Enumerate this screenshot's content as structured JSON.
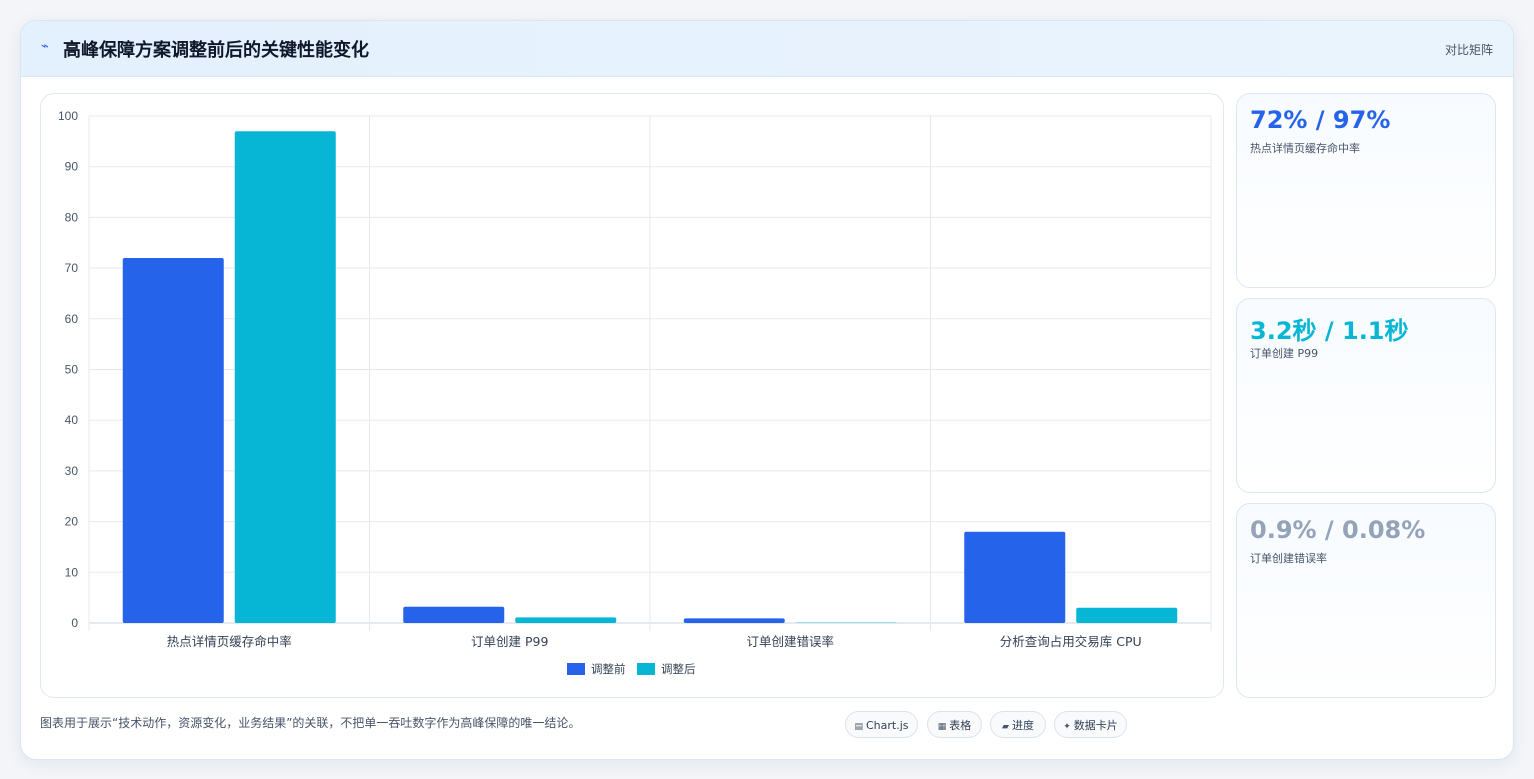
{
  "header": {
    "title": "高峰保障方案调整前后的关键性能变化",
    "right_label": "对比矩阵",
    "icon": "lightning-icon"
  },
  "chart_data": {
    "type": "bar",
    "categories": [
      "热点详情页缓存命中率",
      "订单创建 P99",
      "订单创建错误率",
      "分析查询占用交易库 CPU"
    ],
    "series": [
      {
        "name": "调整前",
        "color": "#2563eb",
        "values": [
          72,
          3.2,
          0.9,
          18
        ]
      },
      {
        "name": "调整后",
        "color": "#06b6d4",
        "values": [
          97,
          1.1,
          0.08,
          3
        ]
      }
    ],
    "ylim": [
      0,
      100
    ],
    "yticks": [
      0,
      10,
      20,
      30,
      40,
      50,
      60,
      70,
      80,
      90,
      100
    ],
    "grid": true,
    "legend_position": "bottom-center"
  },
  "kpis": [
    {
      "value": "72% / 97%",
      "label": "热点详情页缓存命中率",
      "color": "#2563eb"
    },
    {
      "value": "3.2秒 / 1.1秒",
      "label": "订单创建 P99",
      "color": "#06b6d4"
    },
    {
      "value": "0.9% / 0.08%",
      "label": "订单创建错误率",
      "color": "#94a3b8"
    }
  ],
  "footer": {
    "note": "图表用于展示“技术动作，资源变化，业务结果”的关联，不把单一吞吐数字作为高峰保障的唯一结论。",
    "chips": [
      {
        "icon": "chart-icon",
        "glyph": "▤",
        "label": "Chart.js"
      },
      {
        "icon": "table-icon",
        "glyph": "▦",
        "label": "表格"
      },
      {
        "icon": "progress-icon",
        "glyph": "▰",
        "label": "进度"
      },
      {
        "icon": "data-card-icon",
        "glyph": "✦",
        "label": "数据卡片"
      }
    ]
  }
}
